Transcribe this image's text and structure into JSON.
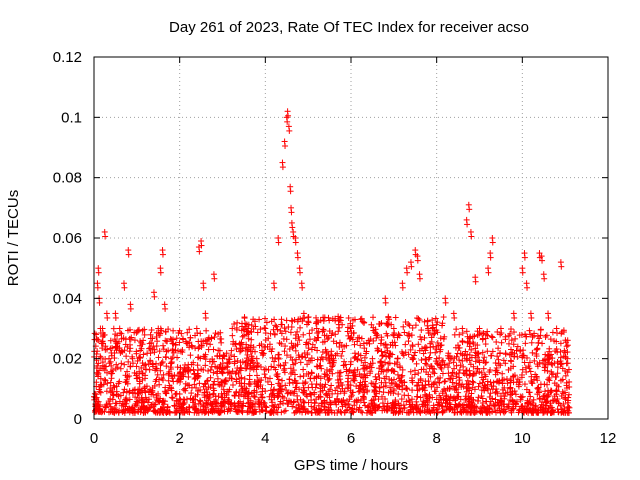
{
  "chart_data": {
    "type": "scatter",
    "title": "Day 261 of 2023, Rate Of TEC Index for receiver acso",
    "xlabel": "GPS time / hours",
    "ylabel": "ROTI / TECUs",
    "xlim": [
      0,
      12
    ],
    "ylim": [
      0,
      0.12
    ],
    "xticks": [
      0,
      2,
      4,
      6,
      8,
      10,
      12
    ],
    "yticks": [
      0,
      0.02,
      0.04,
      0.06,
      0.08,
      0.1,
      0.12
    ],
    "xtick_labels": [
      "0",
      "2",
      "4",
      "6",
      "8",
      "10",
      "12"
    ],
    "ytick_labels": [
      "0",
      "0.02",
      "0.04",
      "0.06",
      "0.08",
      "0.1",
      "0.12"
    ],
    "grid": true,
    "marker": "+",
    "series_color": "#ff0000",
    "x_range": [
      0.0,
      11.1
    ],
    "series": [
      {
        "x": [
          0.05,
          0.08,
          0.1,
          0.12,
          0.15,
          0.18,
          0.2,
          0.25,
          0.3,
          0.35,
          0.4,
          0.5,
          0.55,
          0.6,
          0.7,
          0.8,
          0.85,
          0.9,
          1.0,
          1.2,
          1.3,
          1.4,
          1.5,
          1.55,
          1.6,
          1.65,
          1.8,
          2.0,
          2.2,
          2.4,
          2.45,
          2.5,
          2.55,
          2.6,
          2.8,
          3.0,
          3.2,
          3.4,
          3.6,
          3.8,
          4.0,
          4.2,
          4.3,
          4.4,
          4.45,
          4.5,
          4.52,
          4.55,
          4.58,
          4.6,
          4.62,
          4.65,
          4.7,
          4.75,
          4.8,
          4.85,
          4.9,
          5.0,
          5.2,
          5.5,
          5.7,
          6.0,
          6.3,
          6.5,
          6.8,
          7.0,
          7.2,
          7.3,
          7.4,
          7.5,
          7.55,
          7.6,
          7.8,
          8.0,
          8.2,
          8.4,
          8.6,
          8.7,
          8.75,
          8.8,
          8.9,
          9.0,
          9.2,
          9.25,
          9.3,
          9.5,
          9.8,
          10.0,
          10.05,
          10.1,
          10.2,
          10.4,
          10.45,
          10.5,
          10.6,
          10.8,
          10.9,
          11.0,
          11.05
        ],
        "y": [
          0.028,
          0.045,
          0.05,
          0.04,
          0.03,
          0.025,
          0.03,
          0.062,
          0.035,
          0.02,
          0.015,
          0.035,
          0.025,
          0.03,
          0.045,
          0.056,
          0.038,
          0.02,
          0.015,
          0.018,
          0.025,
          0.042,
          0.03,
          0.05,
          0.056,
          0.038,
          0.02,
          0.015,
          0.018,
          0.03,
          0.057,
          0.059,
          0.045,
          0.035,
          0.048,
          0.02,
          0.015,
          0.025,
          0.03,
          0.02,
          0.03,
          0.045,
          0.06,
          0.085,
          0.092,
          0.1,
          0.102,
          0.097,
          0.077,
          0.07,
          0.065,
          0.062,
          0.06,
          0.055,
          0.05,
          0.045,
          0.035,
          0.025,
          0.03,
          0.02,
          0.034,
          0.03,
          0.025,
          0.02,
          0.04,
          0.03,
          0.045,
          0.05,
          0.052,
          0.056,
          0.054,
          0.048,
          0.03,
          0.02,
          0.04,
          0.035,
          0.03,
          0.066,
          0.071,
          0.062,
          0.047,
          0.03,
          0.05,
          0.055,
          0.06,
          0.03,
          0.035,
          0.05,
          0.055,
          0.045,
          0.035,
          0.055,
          0.054,
          0.048,
          0.035,
          0.03,
          0.052,
          0.022,
          0.02
        ],
        "density_bands": [
          {
            "x": [
              0.0,
              3.0
            ],
            "ymin": 0.002,
            "ymax": 0.03
          },
          {
            "x": [
              3.0,
              3.2
            ],
            "ymin": 0.002,
            "ymax": 0.022
          },
          {
            "x": [
              3.2,
              8.2
            ],
            "ymin": 0.002,
            "ymax": 0.034
          },
          {
            "x": [
              8.2,
              8.4
            ],
            "ymin": 0.003,
            "ymax": 0.022
          },
          {
            "x": [
              8.4,
              11.1
            ],
            "ymin": 0.002,
            "ymax": 0.03
          }
        ]
      }
    ]
  }
}
